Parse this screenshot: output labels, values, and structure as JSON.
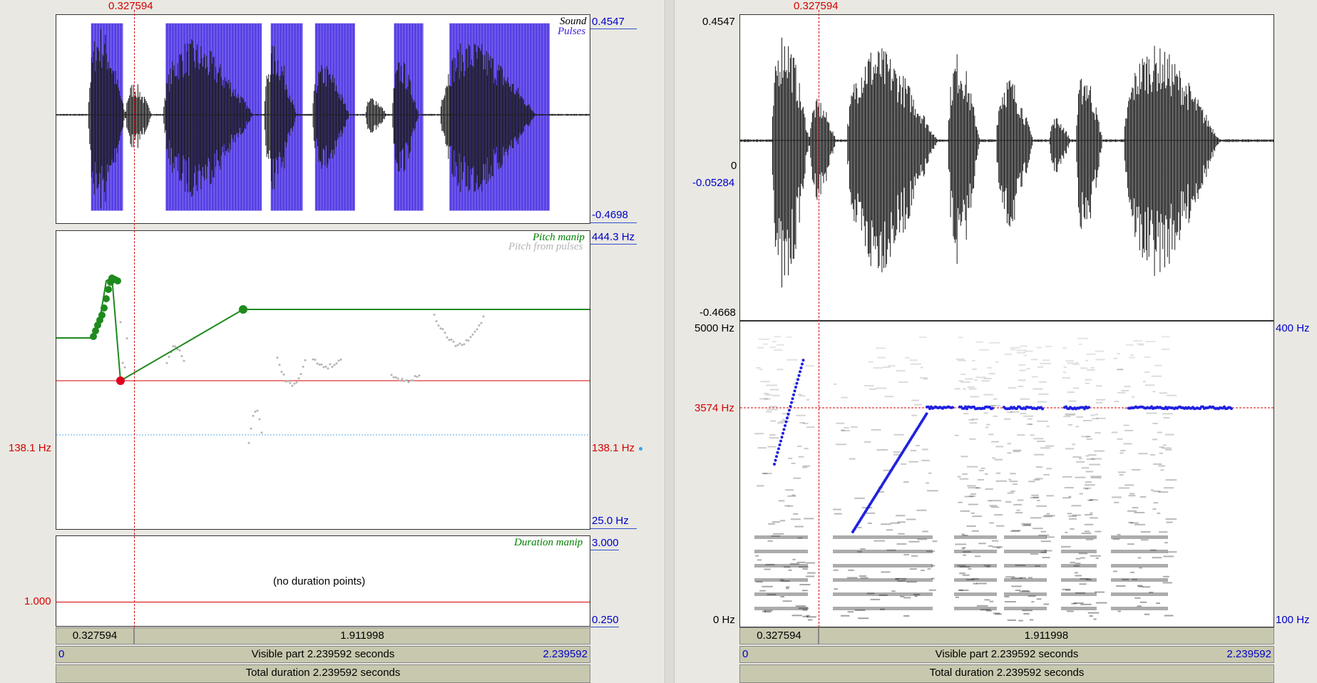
{
  "left": {
    "cursor_time": "0.327594",
    "sound": {
      "legend_sound": "Sound",
      "legend_pulses": "Pulses",
      "ymax": "0.4547",
      "ymin": "-0.4698"
    },
    "pitch": {
      "legend_manip": "Pitch manip",
      "legend_pulses": "Pitch from pulses",
      "ymax": "444.3 Hz",
      "ymin": "25.0 Hz",
      "cursor_left": "138.1 Hz",
      "cursor_right": "138.1 Hz"
    },
    "duration": {
      "legend": "Duration manip",
      "ymax": "3.000",
      "ymin": "0.250",
      "cursor_value": "1.000",
      "empty_text": "(no duration points)"
    },
    "bars": {
      "seg1": "0.327594",
      "seg2": "1.911998",
      "visible_start": "0",
      "visible_text": "Visible part 2.239592 seconds",
      "visible_end": "2.239592",
      "total_text": "Total duration 2.239592 seconds"
    }
  },
  "right": {
    "cursor_time": "0.327594",
    "sound": {
      "ymax": "0.4547",
      "zero": "0",
      "cursor_value": "-0.05284",
      "ymin": "-0.4668"
    },
    "spectrogram": {
      "fmax": "5000 Hz",
      "fmin": "0 Hz",
      "cursor_freq": "3574 Hz",
      "pitch_max": "400 Hz",
      "pitch_min": "100 Hz"
    },
    "bars": {
      "seg1": "0.327594",
      "seg2": "1.911998",
      "visible_start": "0",
      "visible_text": "Visible part 2.239592 seconds",
      "visible_end": "2.239592",
      "total_text": "Total duration 2.239592 seconds"
    }
  },
  "colors": {
    "cursor": "#d40000",
    "pulses": "#3a1fe0",
    "pitch_manip": "#1e8a1e",
    "pitch_pulses": "#b4b4b4",
    "pitch_track": "#2020e0"
  }
}
